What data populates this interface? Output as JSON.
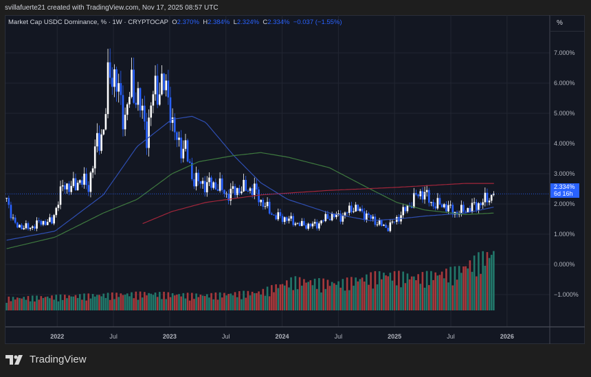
{
  "credit": "svillafuerte21 created with TradingView.com, Nov 17, 2025 08:57 UTC",
  "legend": {
    "title": "Market Cap USDC Dominance, % · 1W · CRYPTOCAP",
    "o_label": "O",
    "o": "2.370%",
    "h_label": "H",
    "h": "2.384%",
    "l_label": "L",
    "l": "2.324%",
    "c_label": "C",
    "c": "2.334%",
    "change": "−0.037 (−1.55%)"
  },
  "unit_button": "%",
  "price_tag": {
    "value": "2.334%",
    "countdown": "6d 16h"
  },
  "brand": "TradingView",
  "colors": {
    "up": "#ffffff",
    "down": "#2962ff",
    "ma_blue": "#2f4fb3",
    "ma_green": "#3f7a3f",
    "ma_red": "#a3263b",
    "vol_up": "#22776a",
    "vol_down": "#a8393c",
    "background": "#131722"
  },
  "chart_data": {
    "type": "candlestick",
    "interval": "1W",
    "y_axis": {
      "ticks": [
        "7.000%",
        "6.000%",
        "5.000%",
        "4.000%",
        "3.000%",
        "2.000%",
        "1.000%",
        "0.000%",
        "−1.000%"
      ],
      "tick_values": [
        7,
        6,
        5,
        4,
        3,
        2,
        1,
        0,
        -1
      ],
      "range": [
        -1.6,
        7.9
      ]
    },
    "x_axis": {
      "ticks": [
        "2022",
        "Jul",
        "2023",
        "Jul",
        "2024",
        "Jul",
        "2025",
        "Jul",
        "2026"
      ],
      "tick_dates": [
        2022.0,
        2022.5,
        2023.0,
        2023.5,
        2024.0,
        2024.5,
        2025.0,
        2025.5,
        2026.0
      ],
      "range": [
        2021.54,
        2026.38
      ]
    },
    "grid": true,
    "last_close": 2.334,
    "close_path": [
      [
        2021.55,
        2.2
      ],
      [
        2021.62,
        1.3
      ],
      [
        2021.75,
        1.2
      ],
      [
        2021.85,
        1.4
      ],
      [
        2021.95,
        1.4
      ],
      [
        2022.06,
        2.7
      ],
      [
        2022.12,
        2.5
      ],
      [
        2022.2,
        2.8
      ],
      [
        2022.28,
        2.6
      ],
      [
        2022.35,
        4.0
      ],
      [
        2022.42,
        4.5
      ],
      [
        2022.46,
        6.5
      ],
      [
        2022.5,
        6.3
      ],
      [
        2022.55,
        5.6
      ],
      [
        2022.6,
        4.8
      ],
      [
        2022.66,
        5.9
      ],
      [
        2022.72,
        5.5
      ],
      [
        2022.8,
        4.3
      ],
      [
        2022.86,
        5.8
      ],
      [
        2022.95,
        5.9
      ],
      [
        2023.0,
        5.5
      ],
      [
        2023.03,
        4.4
      ],
      [
        2023.08,
        4.0
      ],
      [
        2023.14,
        3.8
      ],
      [
        2023.2,
        2.9
      ],
      [
        2023.26,
        2.7
      ],
      [
        2023.44,
        2.6
      ],
      [
        2023.5,
        2.3
      ],
      [
        2023.62,
        2.5
      ],
      [
        2023.75,
        2.5
      ],
      [
        2023.81,
        2.1
      ],
      [
        2023.93,
        1.6
      ],
      [
        2024.05,
        1.5
      ],
      [
        2024.17,
        1.3
      ],
      [
        2024.3,
        1.3
      ],
      [
        2024.42,
        1.6
      ],
      [
        2024.54,
        1.6
      ],
      [
        2024.63,
        1.9
      ],
      [
        2024.72,
        1.7
      ],
      [
        2024.84,
        1.4
      ],
      [
        2024.93,
        1.2
      ],
      [
        2025.02,
        1.5
      ],
      [
        2025.14,
        2.0
      ],
      [
        2025.2,
        2.3
      ],
      [
        2025.26,
        2.4
      ],
      [
        2025.33,
        2.0
      ],
      [
        2025.45,
        1.95
      ],
      [
        2025.54,
        1.7
      ],
      [
        2025.63,
        1.8
      ],
      [
        2025.75,
        2.0
      ],
      [
        2025.84,
        2.2
      ],
      [
        2025.89,
        2.334
      ]
    ],
    "moving_averages": [
      {
        "color_key": "ma_blue",
        "points": [
          [
            2021.55,
            0.8
          ],
          [
            2021.98,
            1.1
          ],
          [
            2022.41,
            2.3
          ],
          [
            2022.71,
            3.9
          ],
          [
            2023.02,
            4.8
          ],
          [
            2023.2,
            4.9
          ],
          [
            2023.32,
            4.7
          ],
          [
            2023.57,
            3.6
          ],
          [
            2023.81,
            2.7
          ],
          [
            2024.05,
            2.15
          ],
          [
            2024.42,
            1.7
          ],
          [
            2024.78,
            1.45
          ],
          [
            2025.02,
            1.5
          ],
          [
            2025.27,
            1.6
          ],
          [
            2025.63,
            1.7
          ],
          [
            2025.89,
            1.9
          ]
        ]
      },
      {
        "color_key": "ma_green",
        "points": [
          [
            2021.55,
            0.52
          ],
          [
            2021.98,
            0.9
          ],
          [
            2022.41,
            1.7
          ],
          [
            2022.71,
            2.15
          ],
          [
            2023.02,
            3.0
          ],
          [
            2023.26,
            3.4
          ],
          [
            2023.57,
            3.6
          ],
          [
            2023.81,
            3.7
          ],
          [
            2024.05,
            3.55
          ],
          [
            2024.42,
            3.2
          ],
          [
            2024.78,
            2.5
          ],
          [
            2025.02,
            2.05
          ],
          [
            2025.27,
            1.8
          ],
          [
            2025.63,
            1.65
          ],
          [
            2025.89,
            1.7
          ]
        ]
      },
      {
        "color_key": "ma_red",
        "points": [
          [
            2022.76,
            1.35
          ],
          [
            2023.02,
            1.75
          ],
          [
            2023.32,
            2.05
          ],
          [
            2023.81,
            2.3
          ],
          [
            2024.42,
            2.45
          ],
          [
            2025.02,
            2.55
          ],
          [
            2025.63,
            2.68
          ],
          [
            2025.89,
            2.68
          ]
        ]
      }
    ],
    "volume_level_path": [
      [
        2021.55,
        20
      ],
      [
        2022.3,
        25
      ],
      [
        2022.8,
        28
      ],
      [
        2023.3,
        25
      ],
      [
        2023.8,
        30
      ],
      [
        2024.1,
        50
      ],
      [
        2024.5,
        45
      ],
      [
        2024.9,
        60
      ],
      [
        2025.2,
        55
      ],
      [
        2025.55,
        65
      ],
      [
        2025.75,
        85
      ],
      [
        2025.88,
        95
      ]
    ]
  }
}
